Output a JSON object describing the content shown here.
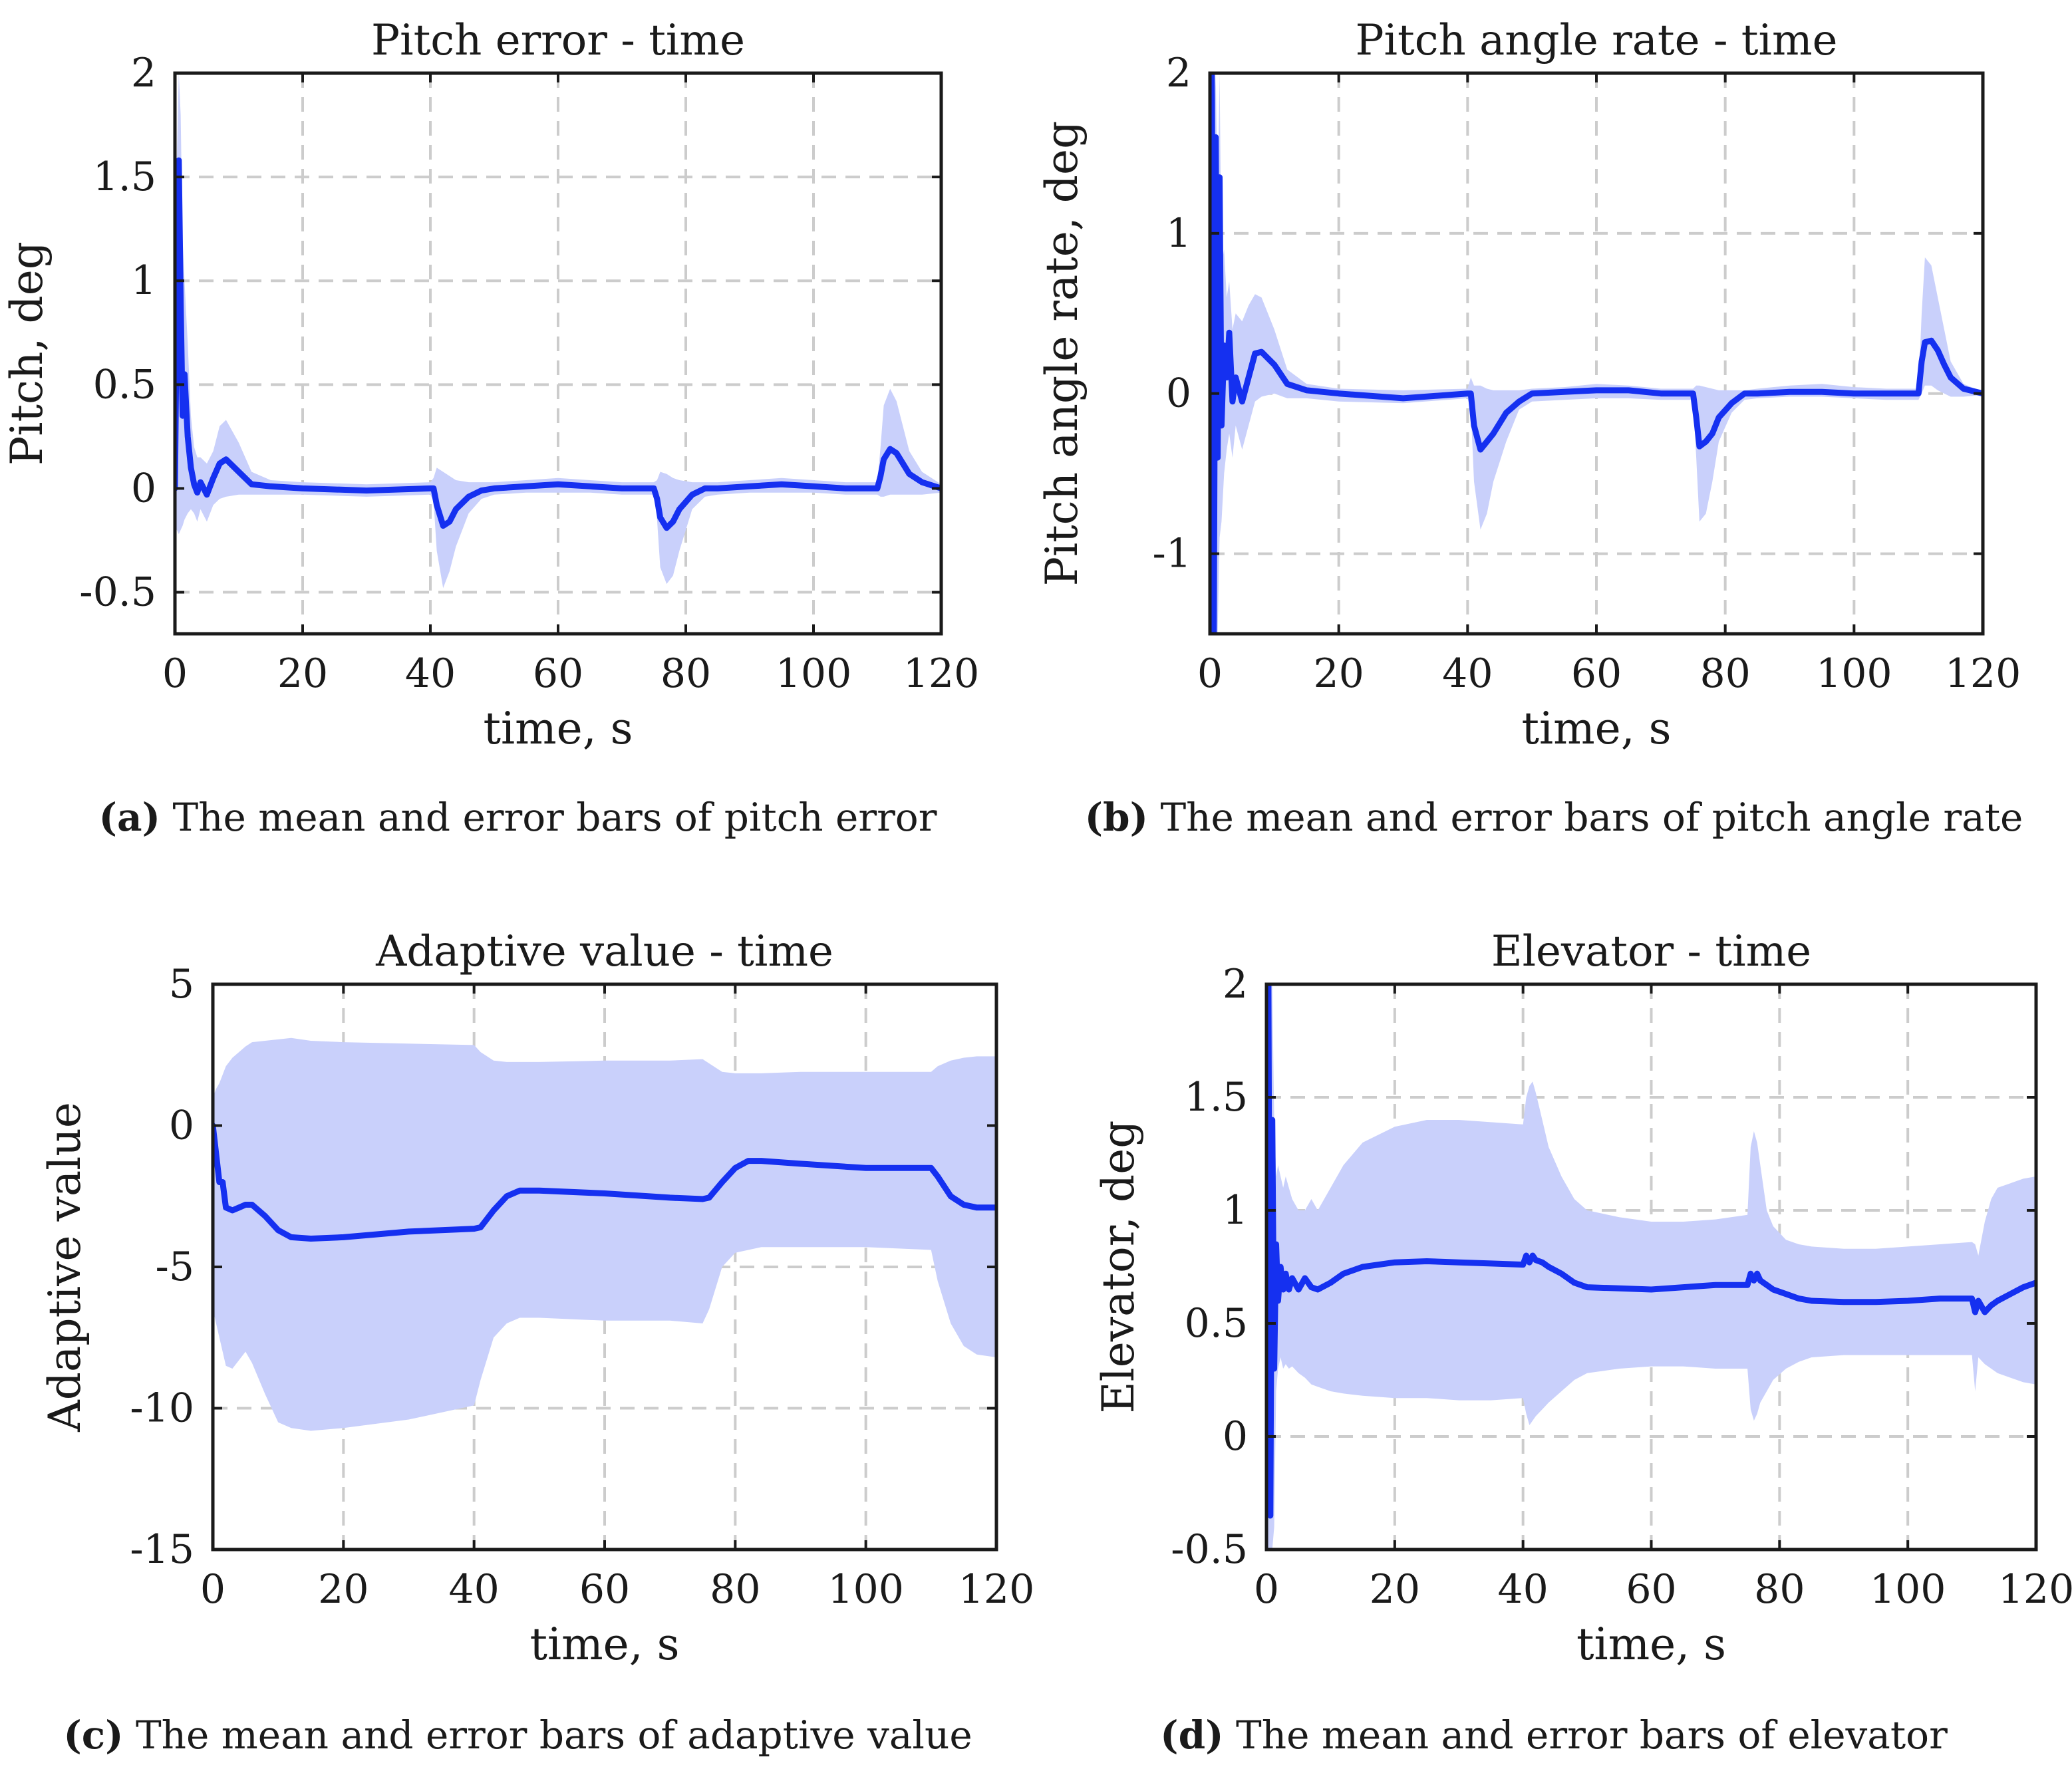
{
  "colors": {
    "mean": "#1530f0",
    "band": "#c9d0fb",
    "grid": "#cccccc",
    "axis": "#1a1a1a"
  },
  "chart_data": [
    {
      "type": "line",
      "id": "a",
      "title": "Pitch error - time",
      "xlabel": "time, s",
      "ylabel": "Pitch, deg",
      "xlim": [
        0,
        120
      ],
      "ylim": [
        -0.7,
        2
      ],
      "xticks": [
        0,
        20,
        40,
        60,
        80,
        100,
        120
      ],
      "yticks": [
        -0.5,
        0,
        0.5,
        1,
        1.5,
        2
      ],
      "yticklabels": [
        "-0.5",
        "0",
        "0.5",
        "1",
        "1.5",
        "2"
      ],
      "grid": true,
      "series": [
        {
          "x": [
            0,
            0.3,
            0.6,
            0.9,
            1.2,
            1.5,
            2,
            2.5,
            3,
            3.5,
            4,
            5,
            6,
            7,
            8,
            10,
            12,
            15,
            20,
            30,
            40,
            40.5,
            41,
            42,
            43,
            44,
            46,
            48,
            50,
            55,
            60,
            65,
            70,
            75,
            75.5,
            76,
            77,
            78,
            79,
            81,
            83,
            85,
            90,
            95,
            100,
            105,
            110,
            110.5,
            111,
            112,
            113,
            114,
            115,
            117,
            120
          ],
          "y": [
            0,
            0.9,
            1.58,
            0.9,
            0.35,
            0.55,
            0.25,
            0.1,
            0.02,
            -0.02,
            0.03,
            -0.03,
            0.05,
            0.12,
            0.14,
            0.08,
            0.02,
            0.01,
            0,
            -0.01,
            0,
            0,
            -0.08,
            -0.18,
            -0.16,
            -0.1,
            -0.04,
            -0.01,
            0,
            0.01,
            0.02,
            0.01,
            0,
            0,
            -0.05,
            -0.14,
            -0.19,
            -0.16,
            -0.1,
            -0.03,
            0,
            0,
            0.01,
            0.02,
            0.01,
            0,
            0,
            0.06,
            0.14,
            0.19,
            0.17,
            0.12,
            0.07,
            0.03,
            0
          ],
          "upper": [
            0.1,
            1.6,
            2.0,
            1.8,
            1.2,
            1.0,
            0.7,
            0.35,
            0.2,
            0.15,
            0.15,
            0.12,
            0.18,
            0.3,
            0.33,
            0.22,
            0.08,
            0.04,
            0.03,
            0.02,
            0.03,
            0.05,
            0.1,
            0.08,
            0.06,
            0.04,
            0.03,
            0.03,
            0.03,
            0.04,
            0.05,
            0.04,
            0.03,
            0.03,
            0.04,
            0.08,
            0.07,
            0.05,
            0.04,
            0.03,
            0.03,
            0.03,
            0.04,
            0.05,
            0.04,
            0.03,
            0.03,
            0.2,
            0.4,
            0.48,
            0.42,
            0.3,
            0.18,
            0.08,
            0.02
          ],
          "lower": [
            -0.2,
            -0.2,
            -0.22,
            -0.2,
            -0.18,
            -0.15,
            -0.12,
            -0.1,
            -0.12,
            -0.16,
            -0.1,
            -0.16,
            -0.08,
            -0.05,
            -0.04,
            -0.03,
            -0.03,
            -0.03,
            -0.03,
            -0.04,
            -0.03,
            -0.06,
            -0.3,
            -0.48,
            -0.4,
            -0.28,
            -0.12,
            -0.05,
            -0.03,
            -0.02,
            -0.02,
            -0.02,
            -0.03,
            -0.03,
            -0.15,
            -0.38,
            -0.46,
            -0.42,
            -0.3,
            -0.1,
            -0.04,
            -0.03,
            -0.02,
            -0.02,
            -0.02,
            -0.03,
            -0.03,
            -0.04,
            -0.04,
            -0.03,
            -0.03,
            -0.03,
            -0.03,
            -0.03,
            -0.02
          ]
        }
      ]
    },
    {
      "type": "line",
      "id": "b",
      "title": "Pitch angle rate - time",
      "xlabel": "time, s",
      "ylabel": "Pitch angle rate, deg",
      "xlim": [
        0,
        120
      ],
      "ylim": [
        -1.5,
        2
      ],
      "xticks": [
        0,
        20,
        40,
        60,
        80,
        100,
        120
      ],
      "yticks": [
        -1,
        0,
        1,
        2
      ],
      "yticklabels": [
        "-1",
        "0",
        "1",
        "2"
      ],
      "grid": true,
      "series": [
        {
          "x": [
            0,
            0.3,
            0.6,
            0.9,
            1.2,
            1.5,
            1.8,
            2.2,
            2.6,
            3,
            3.5,
            4,
            5,
            6,
            7,
            8,
            10,
            12,
            15,
            20,
            30,
            40,
            40.5,
            41,
            42,
            43,
            44,
            46,
            48,
            50,
            55,
            60,
            65,
            70,
            75,
            75.5,
            76,
            77,
            78,
            79,
            81,
            83,
            85,
            90,
            95,
            100,
            105,
            110,
            110.5,
            111,
            112,
            113,
            114,
            115,
            117,
            120
          ],
          "y": [
            0.1,
            2.0,
            -1.5,
            1.6,
            -0.4,
            1.35,
            -0.2,
            0.3,
            0.1,
            0.38,
            -0.05,
            0.1,
            -0.05,
            0.1,
            0.25,
            0.26,
            0.18,
            0.06,
            0.02,
            0,
            -0.03,
            0,
            0,
            -0.2,
            -0.35,
            -0.3,
            -0.25,
            -0.12,
            -0.05,
            0,
            0.01,
            0.02,
            0.02,
            0,
            0,
            -0.15,
            -0.33,
            -0.3,
            -0.25,
            -0.15,
            -0.06,
            0,
            0,
            0.01,
            0.01,
            0,
            0,
            0,
            0.2,
            0.32,
            0.33,
            0.27,
            0.18,
            0.1,
            0.03,
            0
          ],
          "upper": [
            0.5,
            2.0,
            1.6,
            2.0,
            1.2,
            2.0,
            0.8,
            0.9,
            0.6,
            0.7,
            0.4,
            0.5,
            0.45,
            0.55,
            0.62,
            0.6,
            0.4,
            0.15,
            0.06,
            0.03,
            0.02,
            0.03,
            0.1,
            0.05,
            0.05,
            0.03,
            0.02,
            0.02,
            0.02,
            0.03,
            0.04,
            0.06,
            0.05,
            0.03,
            0.03,
            0.05,
            0.05,
            0.04,
            0.03,
            0.02,
            0.02,
            0.02,
            0.03,
            0.05,
            0.06,
            0.04,
            0.03,
            0.03,
            0.5,
            0.85,
            0.8,
            0.6,
            0.4,
            0.2,
            0.06,
            0.01
          ],
          "lower": [
            -1.5,
            -1.5,
            -1.5,
            -1.5,
            -1.5,
            -0.9,
            -0.8,
            -0.5,
            -0.35,
            -0.25,
            -0.4,
            -0.2,
            -0.35,
            -0.2,
            -0.05,
            -0.02,
            0,
            -0.03,
            -0.03,
            -0.05,
            -0.06,
            -0.03,
            -0.1,
            -0.55,
            -0.85,
            -0.75,
            -0.55,
            -0.3,
            -0.1,
            -0.05,
            -0.04,
            -0.03,
            -0.03,
            -0.04,
            -0.04,
            -0.4,
            -0.8,
            -0.75,
            -0.55,
            -0.3,
            -0.12,
            -0.04,
            -0.03,
            -0.02,
            -0.02,
            -0.03,
            -0.04,
            -0.04,
            0,
            0.05,
            0.05,
            0.02,
            0,
            -0.02,
            -0.02,
            -0.01
          ]
        }
      ]
    },
    {
      "type": "line",
      "id": "c",
      "title": "Adaptive value - time",
      "xlabel": "time, s",
      "ylabel": "Adaptive value",
      "xlim": [
        0,
        120
      ],
      "ylim": [
        -15,
        5
      ],
      "xticks": [
        0,
        20,
        40,
        60,
        80,
        100,
        120
      ],
      "yticks": [
        -15,
        -10,
        -5,
        0,
        5
      ],
      "yticklabels": [
        "-15",
        "-10",
        "-5",
        "0",
        "5"
      ],
      "grid": true,
      "series": [
        {
          "x": [
            0,
            0.5,
            1,
            1.5,
            2,
            3,
            4,
            5,
            6,
            8,
            10,
            12,
            15,
            20,
            30,
            40,
            41,
            43,
            45,
            47,
            50,
            60,
            70,
            75,
            76,
            78,
            80,
            82,
            84,
            90,
            100,
            110,
            111,
            113,
            115,
            117,
            120
          ],
          "y": [
            0,
            -1.0,
            -2.0,
            -2.0,
            -2.9,
            -3.0,
            -2.9,
            -2.8,
            -2.8,
            -3.2,
            -3.7,
            -3.95,
            -4.0,
            -3.95,
            -3.75,
            -3.65,
            -3.6,
            -3.0,
            -2.5,
            -2.3,
            -2.3,
            -2.4,
            -2.55,
            -2.6,
            -2.55,
            -2.0,
            -1.5,
            -1.25,
            -1.25,
            -1.35,
            -1.5,
            -1.5,
            -1.8,
            -2.5,
            -2.8,
            -2.9,
            -2.9
          ],
          "upper": [
            1.0,
            1.3,
            1.5,
            1.8,
            2.1,
            2.4,
            2.6,
            2.8,
            2.95,
            3.0,
            3.05,
            3.1,
            3.0,
            2.95,
            2.9,
            2.85,
            2.6,
            2.3,
            2.25,
            2.25,
            2.25,
            2.3,
            2.3,
            2.35,
            2.2,
            1.9,
            1.85,
            1.85,
            1.85,
            1.9,
            1.9,
            1.9,
            2.1,
            2.3,
            2.4,
            2.45,
            2.45
          ],
          "lower": [
            -6.5,
            -7.0,
            -7.5,
            -8.0,
            -8.5,
            -8.6,
            -8.3,
            -8.0,
            -8.4,
            -9.5,
            -10.5,
            -10.7,
            -10.8,
            -10.7,
            -10.4,
            -9.9,
            -9.0,
            -7.5,
            -7.0,
            -6.8,
            -6.8,
            -6.9,
            -6.9,
            -7.0,
            -6.5,
            -5.0,
            -4.5,
            -4.4,
            -4.3,
            -4.3,
            -4.3,
            -4.4,
            -5.5,
            -7.0,
            -7.8,
            -8.1,
            -8.2
          ]
        }
      ]
    },
    {
      "type": "line",
      "id": "d",
      "title": "Elevator - time",
      "xlabel": "time, s",
      "ylabel": "Elevator, deg",
      "xlim": [
        0,
        120
      ],
      "ylim": [
        -0.5,
        2
      ],
      "xticks": [
        0,
        20,
        40,
        60,
        80,
        100,
        120
      ],
      "yticks": [
        -0.5,
        0,
        0.5,
        1,
        1.5,
        2
      ],
      "yticklabels": [
        "-0.5",
        "0",
        "0.5",
        "1",
        "1.5",
        "2"
      ],
      "grid": true,
      "series": [
        {
          "x": [
            0,
            0.3,
            0.6,
            0.9,
            1.2,
            1.5,
            1.8,
            2.2,
            2.6,
            3,
            3.5,
            4,
            5,
            6,
            7,
            8,
            10,
            12,
            15,
            20,
            25,
            30,
            35,
            40,
            40.5,
            41,
            41.5,
            42,
            43,
            44,
            46,
            48,
            50,
            55,
            60,
            65,
            70,
            75,
            75.5,
            76,
            76.5,
            77,
            78,
            79,
            81,
            83,
            85,
            90,
            95,
            100,
            105,
            110,
            110.5,
            111,
            112,
            113,
            114,
            116,
            118,
            120
          ],
          "y": [
            0.9,
            2.0,
            -0.35,
            1.4,
            0.3,
            0.85,
            0.6,
            0.75,
            0.65,
            0.72,
            0.65,
            0.7,
            0.65,
            0.7,
            0.66,
            0.65,
            0.68,
            0.72,
            0.75,
            0.77,
            0.775,
            0.77,
            0.765,
            0.76,
            0.8,
            0.77,
            0.8,
            0.78,
            0.77,
            0.75,
            0.72,
            0.68,
            0.66,
            0.655,
            0.65,
            0.66,
            0.67,
            0.67,
            0.72,
            0.69,
            0.72,
            0.69,
            0.67,
            0.65,
            0.63,
            0.61,
            0.6,
            0.595,
            0.595,
            0.6,
            0.61,
            0.61,
            0.55,
            0.6,
            0.55,
            0.58,
            0.6,
            0.63,
            0.66,
            0.68
          ],
          "upper": [
            2.0,
            2.0,
            2.0,
            2.0,
            1.4,
            1.15,
            1.2,
            1.15,
            1.1,
            1.15,
            1.1,
            1.05,
            1.0,
            1.0,
            1.05,
            1.0,
            1.1,
            1.2,
            1.3,
            1.37,
            1.4,
            1.4,
            1.39,
            1.38,
            1.5,
            1.55,
            1.57,
            1.52,
            1.4,
            1.28,
            1.15,
            1.05,
            1.0,
            0.97,
            0.95,
            0.95,
            0.96,
            0.98,
            1.28,
            1.35,
            1.3,
            1.2,
            1.0,
            0.93,
            0.87,
            0.85,
            0.84,
            0.83,
            0.83,
            0.84,
            0.85,
            0.86,
            0.85,
            0.8,
            0.95,
            1.05,
            1.1,
            1.12,
            1.14,
            1.15
          ],
          "lower": [
            -0.5,
            -0.5,
            -0.5,
            -0.5,
            -0.4,
            0.2,
            0.3,
            0.35,
            0.3,
            0.32,
            0.3,
            0.31,
            0.28,
            0.26,
            0.23,
            0.22,
            0.2,
            0.19,
            0.18,
            0.17,
            0.17,
            0.16,
            0.16,
            0.17,
            0.1,
            0.05,
            0.07,
            0.09,
            0.12,
            0.15,
            0.2,
            0.25,
            0.28,
            0.3,
            0.31,
            0.31,
            0.3,
            0.3,
            0.12,
            0.07,
            0.1,
            0.15,
            0.2,
            0.25,
            0.3,
            0.33,
            0.35,
            0.36,
            0.36,
            0.36,
            0.36,
            0.36,
            0.2,
            0.35,
            0.32,
            0.3,
            0.28,
            0.26,
            0.24,
            0.23
          ]
        }
      ]
    }
  ],
  "captions": [
    {
      "label": "(a)",
      "text": " The mean and error bars of pitch error"
    },
    {
      "label": "(b)",
      "text": " The mean and error bars of pitch angle rate"
    },
    {
      "label": "(c)",
      "text": " The mean and error bars of adaptive value"
    },
    {
      "label": "(d)",
      "text": " The mean and error bars of elevator"
    }
  ]
}
